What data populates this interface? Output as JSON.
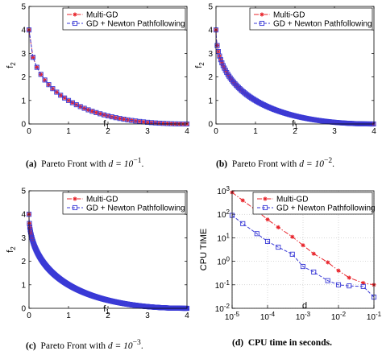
{
  "chart_data": [
    {
      "id": "a",
      "type": "line",
      "caption": {
        "tag": "(a)",
        "text": "Pareto Front with",
        "math": "d = 10",
        "exponent": "−1",
        "end": "."
      },
      "xlabel": "f",
      "xlabel_sub": "1",
      "ylabel": "f",
      "ylabel_sub": "2",
      "xlim": [
        0,
        4
      ],
      "ylim": [
        0,
        5
      ],
      "xticks": [
        "0",
        "1",
        "2",
        "3",
        "4"
      ],
      "yticks": [
        "0",
        "1",
        "2",
        "3",
        "4",
        "5"
      ],
      "front": {
        "f1_start": 0.0,
        "f1_end": 4.0,
        "f2_max": 4.0,
        "step": 0.1
      },
      "marker_stride": 1,
      "legend": {
        "placement": "top-right",
        "entries": [
          "Multi-GD",
          "GD + Newton Pathfollowing"
        ]
      },
      "series": [
        {
          "name": "Multi-GD",
          "color": "#e8232a",
          "style": "dash-dot",
          "marker": "star"
        },
        {
          "name": "GD + Newton Pathfollowing",
          "color": "#3a3ad6",
          "style": "dashed",
          "marker": "square"
        }
      ]
    },
    {
      "id": "b",
      "type": "line",
      "caption": {
        "tag": "(b)",
        "text": "Pareto Front with",
        "math": "d = 10",
        "exponent": "−2",
        "end": "."
      },
      "xlabel": "f",
      "xlabel_sub": "1",
      "ylabel": "f",
      "ylabel_sub": "2",
      "xlim": [
        0,
        4
      ],
      "ylim": [
        0,
        5
      ],
      "xticks": [
        "0",
        "1",
        "2",
        "3",
        "4"
      ],
      "yticks": [
        "0",
        "1",
        "2",
        "3",
        "4",
        "5"
      ],
      "front": {
        "f1_start": 0.0,
        "f1_end": 4.0,
        "f2_max": 4.0,
        "step": 0.01
      },
      "marker_stride": 3,
      "legend": {
        "placement": "top-right",
        "entries": [
          "Multi-GD",
          "GD + Newton Pathfollowing"
        ]
      },
      "series": [
        {
          "name": "Multi-GD",
          "color": "#e8232a",
          "style": "dash-dot",
          "marker": "star"
        },
        {
          "name": "GD + Newton Pathfollowing",
          "color": "#3a3ad6",
          "style": "dashed",
          "marker": "square"
        }
      ]
    },
    {
      "id": "c",
      "type": "line",
      "caption": {
        "tag": "(c)",
        "text": "Pareto Front with",
        "math": "d = 10",
        "exponent": "−3",
        "end": "."
      },
      "xlabel": "f",
      "xlabel_sub": "1",
      "ylabel": "f",
      "ylabel_sub": "2",
      "xlim": [
        0,
        4
      ],
      "ylim": [
        0,
        5
      ],
      "xticks": [
        "0",
        "1",
        "2",
        "3",
        "4"
      ],
      "yticks": [
        "0",
        "1",
        "2",
        "3",
        "4",
        "5"
      ],
      "front": {
        "f1_start": 0.0,
        "f1_end": 4.0,
        "f2_max": 4.0,
        "step": 0.001
      },
      "marker_stride": 10,
      "legend": {
        "placement": "top-right",
        "entries": [
          "Multi-GD",
          "GD + Newton Pathfollowing"
        ]
      },
      "series": [
        {
          "name": "Multi-GD",
          "color": "#e8232a",
          "style": "dash-dot",
          "marker": "star"
        },
        {
          "name": "GD + Newton Pathfollowing",
          "color": "#3a3ad6",
          "style": "dashed",
          "marker": "square"
        }
      ]
    },
    {
      "id": "d",
      "type": "line",
      "caption": {
        "tag": "(d)",
        "text": "CPU time in seconds.",
        "math": "",
        "exponent": "",
        "end": ""
      },
      "xlabel": "d",
      "xlabel_sub": "",
      "ylabel": "CPU TIME",
      "ylabel_sub": "",
      "xscale": "log",
      "yscale": "log",
      "xlim": [
        1e-05,
        0.1
      ],
      "ylim": [
        0.01,
        1000
      ],
      "xticks": [
        {
          "value": 1e-05,
          "base": "10",
          "exp": "-5"
        },
        {
          "value": 0.0001,
          "base": "10",
          "exp": "-4"
        },
        {
          "value": 0.001,
          "base": "10",
          "exp": "-3"
        },
        {
          "value": 0.01,
          "base": "10",
          "exp": "-2"
        },
        {
          "value": 0.1,
          "base": "10",
          "exp": "-1"
        }
      ],
      "yticks": [
        {
          "value": 0.01,
          "base": "10",
          "exp": "-2"
        },
        {
          "value": 0.1,
          "base": "10",
          "exp": "-1"
        },
        {
          "value": 1,
          "base": "10",
          "exp": "0"
        },
        {
          "value": 10,
          "base": "10",
          "exp": "1"
        },
        {
          "value": 100,
          "base": "10",
          "exp": "2"
        },
        {
          "value": 1000,
          "base": "10",
          "exp": "3"
        }
      ],
      "legend": {
        "placement": "top-right",
        "entries": [
          "Multi-GD",
          "GD + Newton Pathfollowing"
        ]
      },
      "x": [
        1e-05,
        2e-05,
        5e-05,
        0.0001,
        0.0002,
        0.0005,
        0.001,
        0.002,
        0.005,
        0.01,
        0.02,
        0.05,
        0.1
      ],
      "series": [
        {
          "name": "Multi-GD",
          "color": "#e8232a",
          "style": "dash-dot",
          "marker": "star",
          "values": [
            850,
            390,
            140,
            60,
            28,
            11,
            4.8,
            2.1,
            0.9,
            0.4,
            0.2,
            0.12,
            0.1
          ]
        },
        {
          "name": "GD + Newton Pathfollowing",
          "color": "#3a3ad6",
          "style": "dashed",
          "marker": "square",
          "values": [
            90,
            40,
            15,
            7,
            4,
            2,
            0.6,
            0.35,
            0.15,
            0.1,
            0.09,
            0.085,
            0.03
          ]
        }
      ]
    }
  ]
}
